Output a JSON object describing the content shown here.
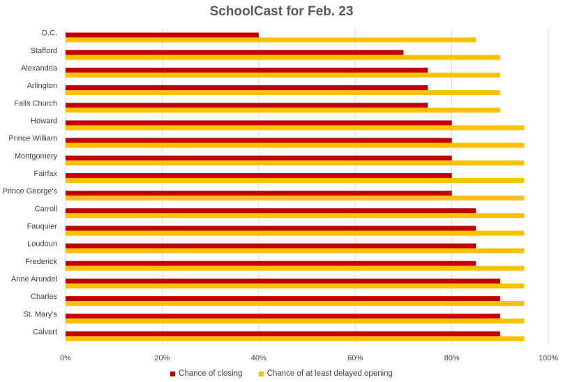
{
  "chart_data": {
    "type": "bar",
    "orientation": "horizontal",
    "title": "SchoolCast for Feb. 23",
    "categories": [
      "D.C.",
      "Stafford",
      "Alexandria",
      "Arlington",
      "Falls Church",
      "Howard",
      "Prince William",
      "Montgomery",
      "Fairfax",
      "Prince George's",
      "Carroll",
      "Fauquier",
      "Loudoun",
      "Frederick",
      "Anne Arundel",
      "Charles",
      "St. Mary's",
      "Calvert"
    ],
    "series": [
      {
        "name": "Chance of closing",
        "color": "#C00000",
        "values": [
          40,
          70,
          75,
          75,
          75,
          80,
          80,
          80,
          80,
          80,
          85,
          85,
          85,
          85,
          90,
          90,
          90,
          90
        ]
      },
      {
        "name": "Chance of at least delayed opening",
        "color": "#FFC000",
        "values": [
          85,
          90,
          90,
          90,
          90,
          95,
          95,
          95,
          95,
          95,
          95,
          95,
          95,
          95,
          95,
          95,
          95,
          95
        ]
      }
    ],
    "xlim": [
      0,
      100
    ],
    "x_ticks": [
      "0%",
      "20%",
      "40%",
      "60%",
      "80%",
      "100%"
    ],
    "grid": true,
    "legend_position": "bottom"
  }
}
